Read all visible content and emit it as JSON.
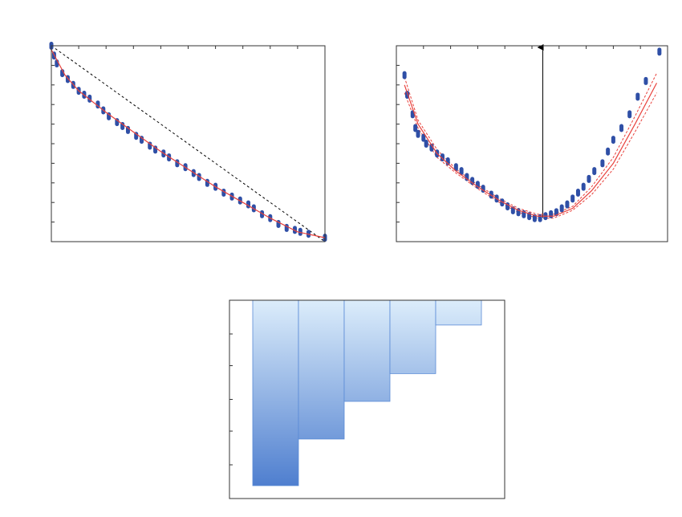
{
  "chart_data": [
    {
      "type": "scatter",
      "x": [
        0,
        1,
        2,
        4,
        6,
        8,
        10,
        12,
        14,
        17,
        19,
        21,
        24,
        26,
        28,
        31,
        33,
        36,
        38,
        41,
        43,
        46,
        49,
        52,
        54,
        57,
        60,
        63,
        66,
        69,
        72,
        74,
        77,
        80,
        83,
        86,
        89,
        91,
        94,
        100
      ],
      "y": [
        100,
        95,
        91,
        86,
        83,
        80,
        77,
        75,
        73,
        70,
        67,
        64,
        61,
        59,
        57,
        54,
        52,
        49,
        47,
        45,
        43,
        40,
        38,
        35,
        33,
        30,
        28,
        25,
        23,
        21,
        19,
        17,
        14,
        12,
        9,
        7,
        6,
        5,
        4,
        2
      ],
      "color": "#2f4fa6",
      "fit": {
        "x": [
          0,
          5,
          10,
          20,
          30,
          40,
          50,
          60,
          70,
          80,
          90,
          100
        ],
        "y": [
          98,
          85,
          77,
          66,
          56,
          46,
          37,
          28,
          20,
          12,
          5,
          2
        ],
        "color": "#e8413c"
      },
      "reference": {
        "x": [
          0,
          100
        ],
        "y": [
          100,
          0
        ],
        "color": "#000000"
      },
      "xlim": [
        0,
        100
      ],
      "ylim": [
        0,
        100
      ],
      "xticks": [
        0,
        10,
        20,
        30,
        40,
        50,
        60,
        70,
        80,
        90,
        100
      ],
      "yticks": [
        0,
        10,
        20,
        30,
        40,
        50,
        60,
        70,
        80,
        90,
        100
      ]
    },
    {
      "type": "scatter",
      "x": [
        3,
        4,
        6,
        7,
        8,
        10,
        11,
        13,
        15,
        17,
        19,
        22,
        24,
        26,
        28,
        30,
        32,
        35,
        37,
        39,
        41,
        43,
        45,
        47,
        49,
        51,
        53,
        55,
        57,
        59,
        61,
        63,
        65,
        67,
        69,
        71,
        73,
        76,
        78,
        80,
        83,
        86,
        89,
        92,
        97
      ],
      "y": [
        85,
        75,
        65,
        58,
        55,
        53,
        50,
        48,
        45,
        43,
        41,
        38,
        36,
        33,
        31,
        29,
        27,
        24,
        22,
        20,
        18,
        16,
        15,
        14,
        13,
        12,
        12,
        13,
        14,
        15,
        17,
        19,
        22,
        25,
        28,
        32,
        36,
        40,
        46,
        52,
        58,
        65,
        74,
        82,
        97
      ],
      "color": "#2f4fa6",
      "fit": {
        "x": [
          3,
          8,
          15,
          22,
          30,
          38,
          45,
          52,
          58,
          65,
          72,
          80,
          88,
          96
        ],
        "y": [
          80,
          60,
          45,
          36,
          28,
          21,
          16,
          13,
          13,
          17,
          26,
          40,
          60,
          81
        ],
        "color": "#e8413c"
      },
      "band_upper": {
        "x": [
          3,
          8,
          15,
          22,
          30,
          38,
          45,
          52,
          58,
          65,
          72,
          80,
          88,
          96
        ],
        "y": [
          84,
          62,
          47,
          37,
          29,
          22,
          17,
          14,
          14,
          18,
          28,
          43,
          64,
          86
        ]
      },
      "band_lower": {
        "x": [
          3,
          8,
          15,
          22,
          30,
          38,
          45,
          52,
          58,
          65,
          72,
          80,
          88,
          96
        ],
        "y": [
          76,
          58,
          43,
          35,
          27,
          20,
          15,
          12,
          12,
          16,
          24,
          37,
          56,
          76
        ]
      },
      "arrow_x": 54,
      "xlim": [
        0,
        100
      ],
      "ylim": [
        0,
        100
      ],
      "xticks": [
        0,
        10,
        20,
        30,
        40,
        50,
        60,
        70,
        80,
        90,
        100
      ],
      "yticks": [
        0,
        10,
        20,
        30,
        40,
        50,
        60,
        70,
        80,
        90,
        100
      ]
    },
    {
      "type": "bar",
      "categories": [
        null,
        null,
        null,
        null,
        null
      ],
      "values": [
        93.5,
        70,
        51,
        37,
        12.5
      ],
      "color_top": "#dcedfb",
      "color_bottom": "#4577cc",
      "edge_color": "#5a8bd6",
      "ylim": [
        100,
        0
      ],
      "yticks": [
        17,
        33,
        50,
        66,
        83
      ]
    }
  ]
}
